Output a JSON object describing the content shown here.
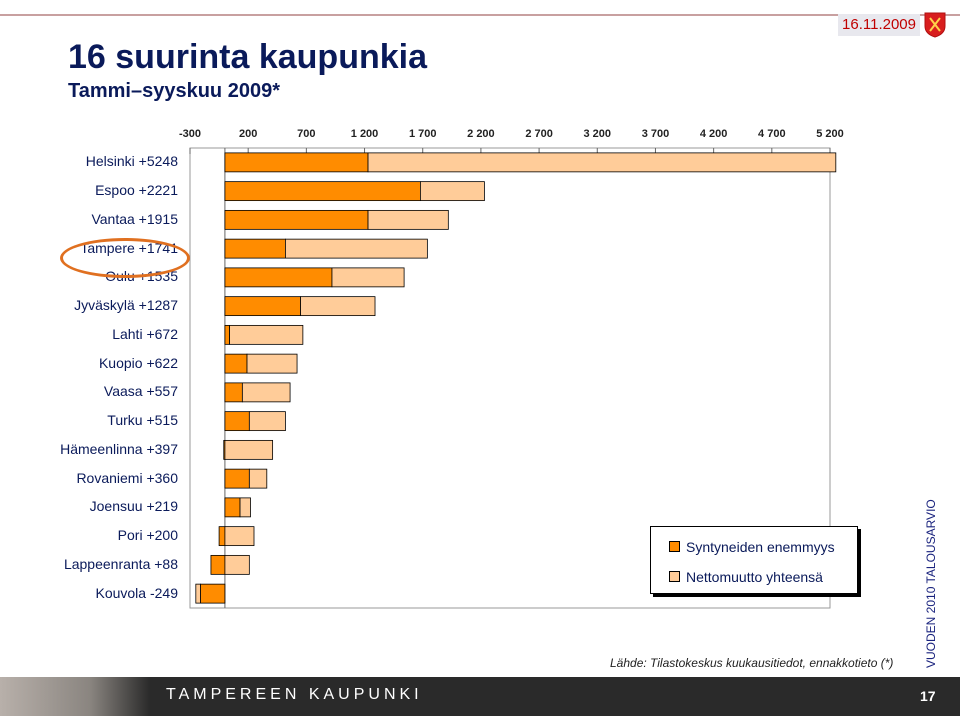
{
  "header": {
    "date": "16.11.2009",
    "title": "16 suurinta kaupunkia",
    "subtitle": "Tammi–syyskuu 2009*"
  },
  "chart_data": {
    "type": "bar",
    "stacked": true,
    "orientation": "horizontal",
    "xlim": [
      -300,
      5200
    ],
    "tick_labels": [
      "-300",
      "200",
      "700",
      "1 200",
      "1 700",
      "2 200",
      "2 700",
      "3 200",
      "3 700",
      "4 200",
      "4 700",
      "5 200"
    ],
    "categories": [
      "Helsinki +5248",
      "Espoo +2221",
      "Vantaa +1915",
      "Tampere +1741",
      "Oulu +1535",
      "Jyväskylä +1287",
      "Lahti +672",
      "Kuopio +622",
      "Vaasa +557",
      "Turku +515",
      "Hämeenlinna +397",
      "Rovaniemi +360",
      "Joensuu +219",
      "Pori +200",
      "Lappeenranta +88",
      "Kouvola -249"
    ],
    "highlighted_category": "Tampere +1741",
    "series": [
      {
        "name": "Syntyneiden enemmyys",
        "color": "#ff8c00",
        "values": [
          1230,
          1680,
          1230,
          520,
          920,
          650,
          40,
          190,
          150,
          210,
          -10,
          210,
          130,
          -50,
          -120,
          -210
        ]
      },
      {
        "name": "Nettomuutto yhteensä",
        "color": "#ffcc99",
        "values": [
          4020,
          550,
          690,
          1220,
          620,
          640,
          630,
          430,
          410,
          310,
          410,
          150,
          90,
          250,
          210,
          -40
        ]
      }
    ]
  },
  "source": "Lähde: Tilastokeskus kuukausitiedot, ennakkotieto (*)",
  "side_text": "VUODEN 2010 TALOUSARVIO",
  "footer": {
    "title": "TAMPEREEN KAUPUNKI",
    "page": "17"
  },
  "colors": {
    "title": "#0a1a5a",
    "accent": "#c00000",
    "footer_bg": "#2a2a2a"
  }
}
